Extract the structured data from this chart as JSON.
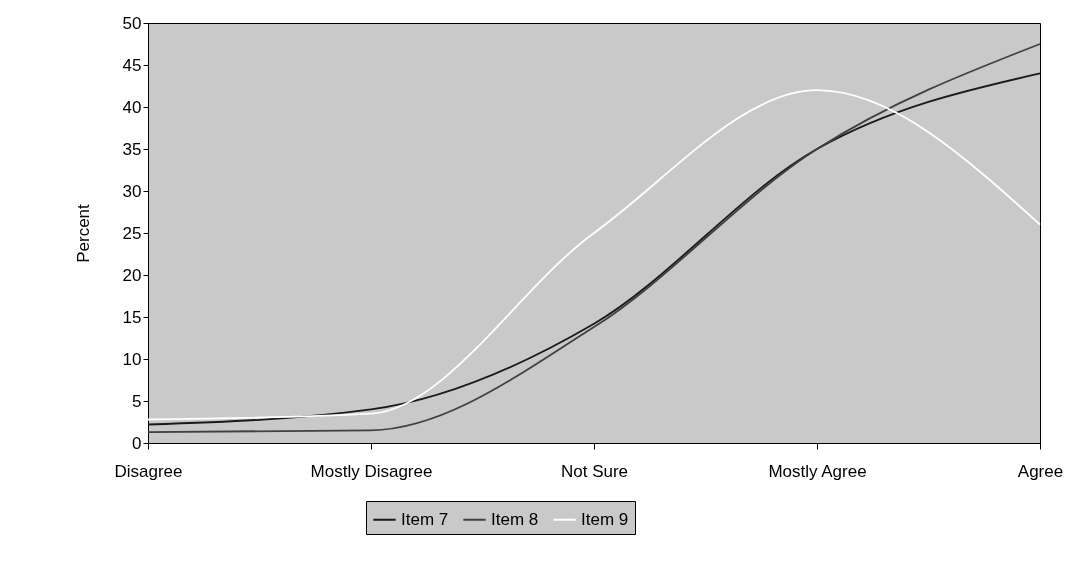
{
  "chart_data": {
    "type": "line",
    "ylabel": "Percent",
    "categories": [
      "Disagree",
      "Mostly Disagree",
      "Not Sure",
      "Mostly Agree",
      "Agree"
    ],
    "series": [
      {
        "name": "Item 7",
        "color": "#1a1a1a",
        "values": [
          2.2,
          4,
          14.2,
          35,
          44
        ]
      },
      {
        "name": "Item 8",
        "color": "#404040",
        "values": [
          1.3,
          1.5,
          13.8,
          35,
          47.5
        ]
      },
      {
        "name": "Item 9",
        "color": "#ffffff",
        "values": [
          2.8,
          3.5,
          25,
          42,
          26
        ]
      }
    ],
    "ylim": [
      0,
      50
    ],
    "yticks": [
      0,
      5,
      10,
      15,
      20,
      25,
      30,
      35,
      40,
      45,
      50
    ],
    "grid": false,
    "legend": "bottom",
    "marker": "none",
    "line_style": "solid"
  }
}
